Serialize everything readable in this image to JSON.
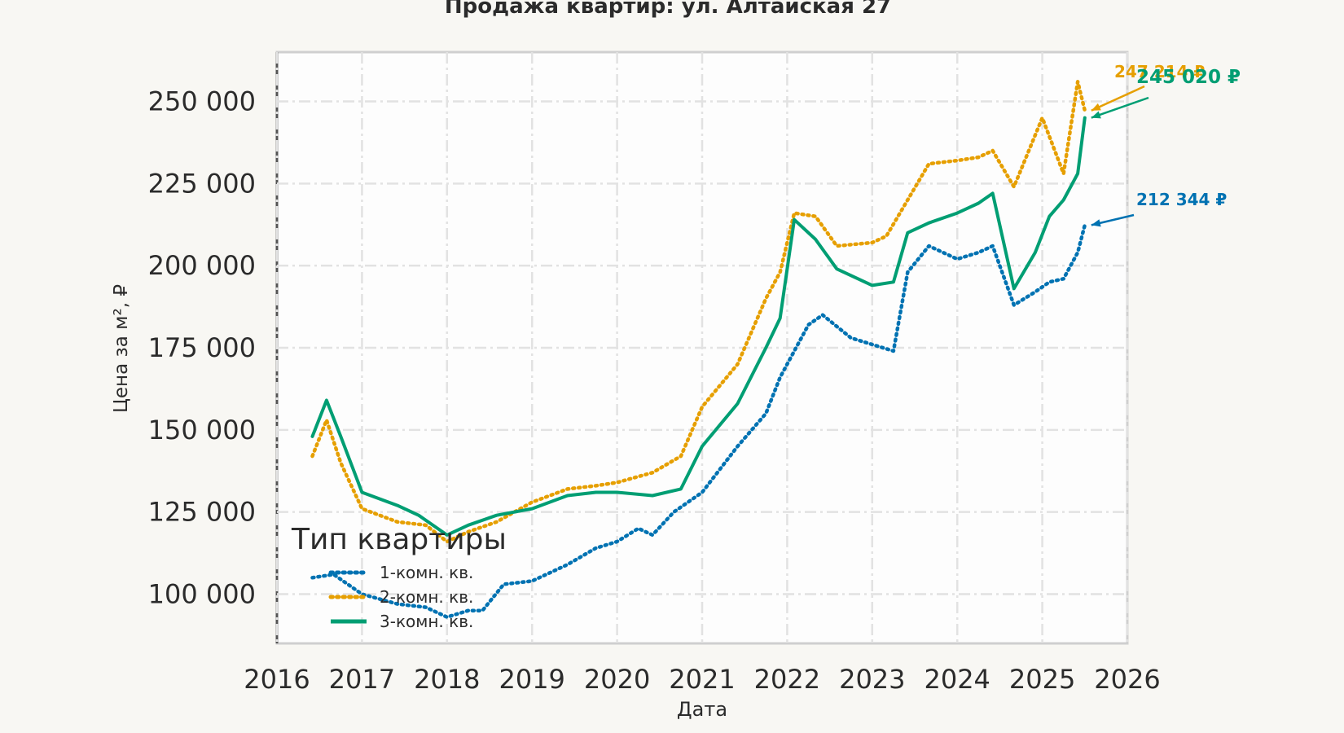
{
  "chart_data": {
    "type": "line",
    "title": "Продажа квартир: ул. Алтайская 27",
    "xlabel": "Дата",
    "ylabel": "Цена за м², ₽",
    "xlim": [
      "2016-01-01",
      "2026-01-01"
    ],
    "ylim": [
      85000,
      265000
    ],
    "x_ticks": [
      "2016",
      "2017",
      "2018",
      "2019",
      "2020",
      "2021",
      "2022",
      "2023",
      "2024",
      "2025",
      "2026"
    ],
    "y_ticks": [
      "100 000",
      "125 000",
      "150 000",
      "175 000",
      "200 000",
      "225 000",
      "250 000"
    ],
    "y_tick_values": [
      100000,
      125000,
      150000,
      175000,
      200000,
      225000,
      250000
    ],
    "grid": true,
    "legend": {
      "title": "Тип квартиры",
      "position": "bottom-left"
    },
    "series": [
      {
        "name": "1-комн. кв.",
        "color": "#0072b2",
        "style": "dotted",
        "end_label": "212 344 ₽",
        "points": [
          [
            "2016-06",
            105000
          ],
          [
            "2016-09",
            106000
          ],
          [
            "2017-01",
            100000
          ],
          [
            "2017-06",
            97000
          ],
          [
            "2017-10",
            96000
          ],
          [
            "2018-01",
            93000
          ],
          [
            "2018-04",
            95000
          ],
          [
            "2018-06",
            95000
          ],
          [
            "2018-09",
            103000
          ],
          [
            "2019-01",
            104000
          ],
          [
            "2019-06",
            109000
          ],
          [
            "2019-10",
            114000
          ],
          [
            "2020-01",
            116000
          ],
          [
            "2020-04",
            120000
          ],
          [
            "2020-06",
            118000
          ],
          [
            "2020-09",
            125000
          ],
          [
            "2021-01",
            131000
          ],
          [
            "2021-06",
            145000
          ],
          [
            "2021-10",
            155000
          ],
          [
            "2021-12",
            166000
          ],
          [
            "2022-04",
            182000
          ],
          [
            "2022-06",
            185000
          ],
          [
            "2022-10",
            178000
          ],
          [
            "2023-01",
            176000
          ],
          [
            "2023-04",
            174000
          ],
          [
            "2023-06",
            198000
          ],
          [
            "2023-09",
            206000
          ],
          [
            "2024-01",
            202000
          ],
          [
            "2024-04",
            204000
          ],
          [
            "2024-06",
            206000
          ],
          [
            "2024-09",
            188000
          ],
          [
            "2024-12",
            192000
          ],
          [
            "2025-02",
            195000
          ],
          [
            "2025-04",
            196000
          ],
          [
            "2025-06",
            204000
          ],
          [
            "2025-07",
            212344
          ]
        ]
      },
      {
        "name": "2-комн. кв.",
        "color": "#e69f00",
        "style": "dotted",
        "end_label": "247 214 ₽",
        "points": [
          [
            "2016-06",
            142000
          ],
          [
            "2016-08",
            153000
          ],
          [
            "2016-10",
            140000
          ],
          [
            "2017-01",
            126000
          ],
          [
            "2017-06",
            122000
          ],
          [
            "2017-10",
            121000
          ],
          [
            "2018-01",
            116000
          ],
          [
            "2018-04",
            119000
          ],
          [
            "2018-08",
            122000
          ],
          [
            "2019-01",
            128000
          ],
          [
            "2019-06",
            132000
          ],
          [
            "2019-10",
            133000
          ],
          [
            "2020-01",
            134000
          ],
          [
            "2020-06",
            137000
          ],
          [
            "2020-10",
            142000
          ],
          [
            "2021-01",
            157000
          ],
          [
            "2021-06",
            170000
          ],
          [
            "2021-10",
            190000
          ],
          [
            "2021-12",
            198000
          ],
          [
            "2022-02",
            216000
          ],
          [
            "2022-05",
            215000
          ],
          [
            "2022-08",
            206000
          ],
          [
            "2023-01",
            207000
          ],
          [
            "2023-03",
            209000
          ],
          [
            "2023-06",
            220000
          ],
          [
            "2023-09",
            231000
          ],
          [
            "2024-01",
            232000
          ],
          [
            "2024-04",
            233000
          ],
          [
            "2024-06",
            235000
          ],
          [
            "2024-09",
            224000
          ],
          [
            "2025-01",
            245000
          ],
          [
            "2025-04",
            228000
          ],
          [
            "2025-06",
            256000
          ],
          [
            "2025-07",
            247214
          ]
        ]
      },
      {
        "name": "3-комн. кв.",
        "color": "#009e73",
        "style": "solid",
        "end_label": "245 020 ₽",
        "points": [
          [
            "2016-06",
            148000
          ],
          [
            "2016-08",
            159000
          ],
          [
            "2016-10",
            148000
          ],
          [
            "2017-01",
            131000
          ],
          [
            "2017-06",
            127000
          ],
          [
            "2017-09",
            124000
          ],
          [
            "2018-01",
            118000
          ],
          [
            "2018-04",
            121000
          ],
          [
            "2018-08",
            124000
          ],
          [
            "2019-01",
            126000
          ],
          [
            "2019-06",
            130000
          ],
          [
            "2019-10",
            131000
          ],
          [
            "2020-01",
            131000
          ],
          [
            "2020-06",
            130000
          ],
          [
            "2020-10",
            132000
          ],
          [
            "2021-01",
            145000
          ],
          [
            "2021-06",
            158000
          ],
          [
            "2021-10",
            175000
          ],
          [
            "2021-12",
            184000
          ],
          [
            "2022-02",
            214000
          ],
          [
            "2022-05",
            208000
          ],
          [
            "2022-08",
            199000
          ],
          [
            "2023-01",
            194000
          ],
          [
            "2023-04",
            195000
          ],
          [
            "2023-06",
            210000
          ],
          [
            "2023-09",
            213000
          ],
          [
            "2024-01",
            216000
          ],
          [
            "2024-04",
            219000
          ],
          [
            "2024-06",
            222000
          ],
          [
            "2024-09",
            193000
          ],
          [
            "2024-12",
            204000
          ],
          [
            "2025-02",
            215000
          ],
          [
            "2025-04",
            220000
          ],
          [
            "2025-06",
            228000
          ],
          [
            "2025-07",
            245020
          ]
        ]
      }
    ]
  }
}
